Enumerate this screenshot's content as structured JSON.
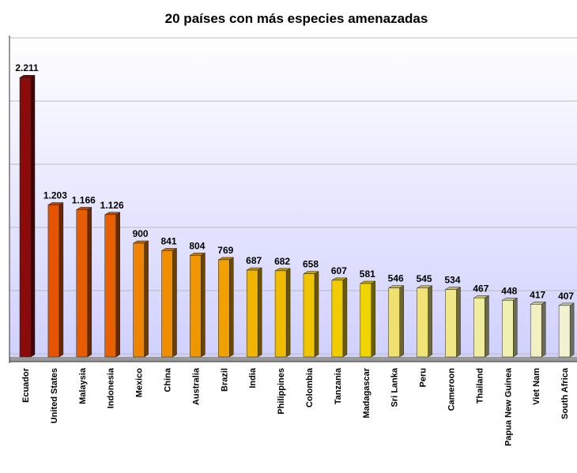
{
  "chart_data": {
    "type": "bar",
    "title": "20 países con más especies amenazadas",
    "categories": [
      "Ecuador",
      "United States",
      "Malaysia",
      "Indonesia",
      "Mexico",
      "China",
      "Australia",
      "Brazil",
      "India",
      "Philippines",
      "Colombia",
      "Tanzania",
      "Madagascar",
      "Sri Lanka",
      "Peru",
      "Cameroon",
      "Thailand",
      "Papua New Guinea",
      "Viet Nam",
      "South Africa"
    ],
    "values": [
      2211,
      1203,
      1166,
      1126,
      900,
      841,
      804,
      769,
      687,
      682,
      658,
      607,
      581,
      546,
      545,
      534,
      467,
      448,
      417,
      407
    ],
    "value_labels": [
      "2.211",
      "1.203",
      "1.166",
      "1.126",
      "900",
      "841",
      "804",
      "769",
      "687",
      "682",
      "658",
      "607",
      "581",
      "546",
      "545",
      "534",
      "467",
      "448",
      "417",
      "407"
    ],
    "colors": [
      "#8b0a0a",
      "#e65400",
      "#e85c00",
      "#e86000",
      "#f08400",
      "#f08e00",
      "#f09600",
      "#f0a000",
      "#f0b400",
      "#f0bc00",
      "#f0c400",
      "#f0cc00",
      "#f0d400",
      "#f0e070",
      "#f0e478",
      "#f0e888",
      "#f0eca0",
      "#f0f0b0",
      "#f0f0c0",
      "#f2f2d0"
    ],
    "ylim": [
      0,
      2500
    ],
    "yticks": [
      0,
      500,
      1000,
      1500,
      2000,
      2500
    ],
    "grid": true
  }
}
